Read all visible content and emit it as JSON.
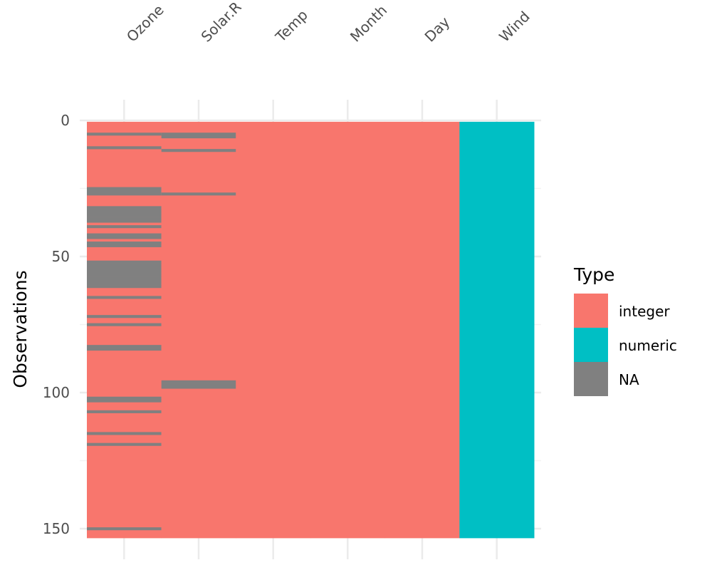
{
  "chart_data": {
    "type": "heatmap",
    "title": "",
    "xlabel": "",
    "ylabel": "Observations",
    "columns": [
      "Ozone",
      "Solar.R",
      "Temp",
      "Month",
      "Day",
      "Wind"
    ],
    "column_types": [
      "integer",
      "integer",
      "integer",
      "integer",
      "integer",
      "numeric"
    ],
    "n_rows": 153,
    "ylim": [
      0,
      153
    ],
    "y_ticks": [
      0,
      50,
      100,
      150
    ],
    "y_tick_labels": [
      "0",
      "50",
      "100",
      "150"
    ],
    "missing_rows": {
      "Ozone": [
        5,
        10,
        25,
        26,
        27,
        32,
        33,
        34,
        35,
        36,
        37,
        39,
        42,
        43,
        45,
        46,
        52,
        53,
        54,
        55,
        56,
        57,
        58,
        59,
        60,
        61,
        65,
        72,
        75,
        83,
        84,
        102,
        103,
        107,
        115,
        119,
        150
      ],
      "Solar.R": [
        5,
        6,
        11,
        27,
        96,
        97,
        98
      ],
      "Temp": [],
      "Month": [],
      "Day": [],
      "Wind": []
    },
    "legend": {
      "title": "Type",
      "position": "right",
      "entries": [
        {
          "label": "integer",
          "color": "#F8766D"
        },
        {
          "label": "numeric",
          "color": "#00BFC4"
        },
        {
          "label": "NA",
          "color": "#808080"
        }
      ]
    },
    "grid": true
  }
}
